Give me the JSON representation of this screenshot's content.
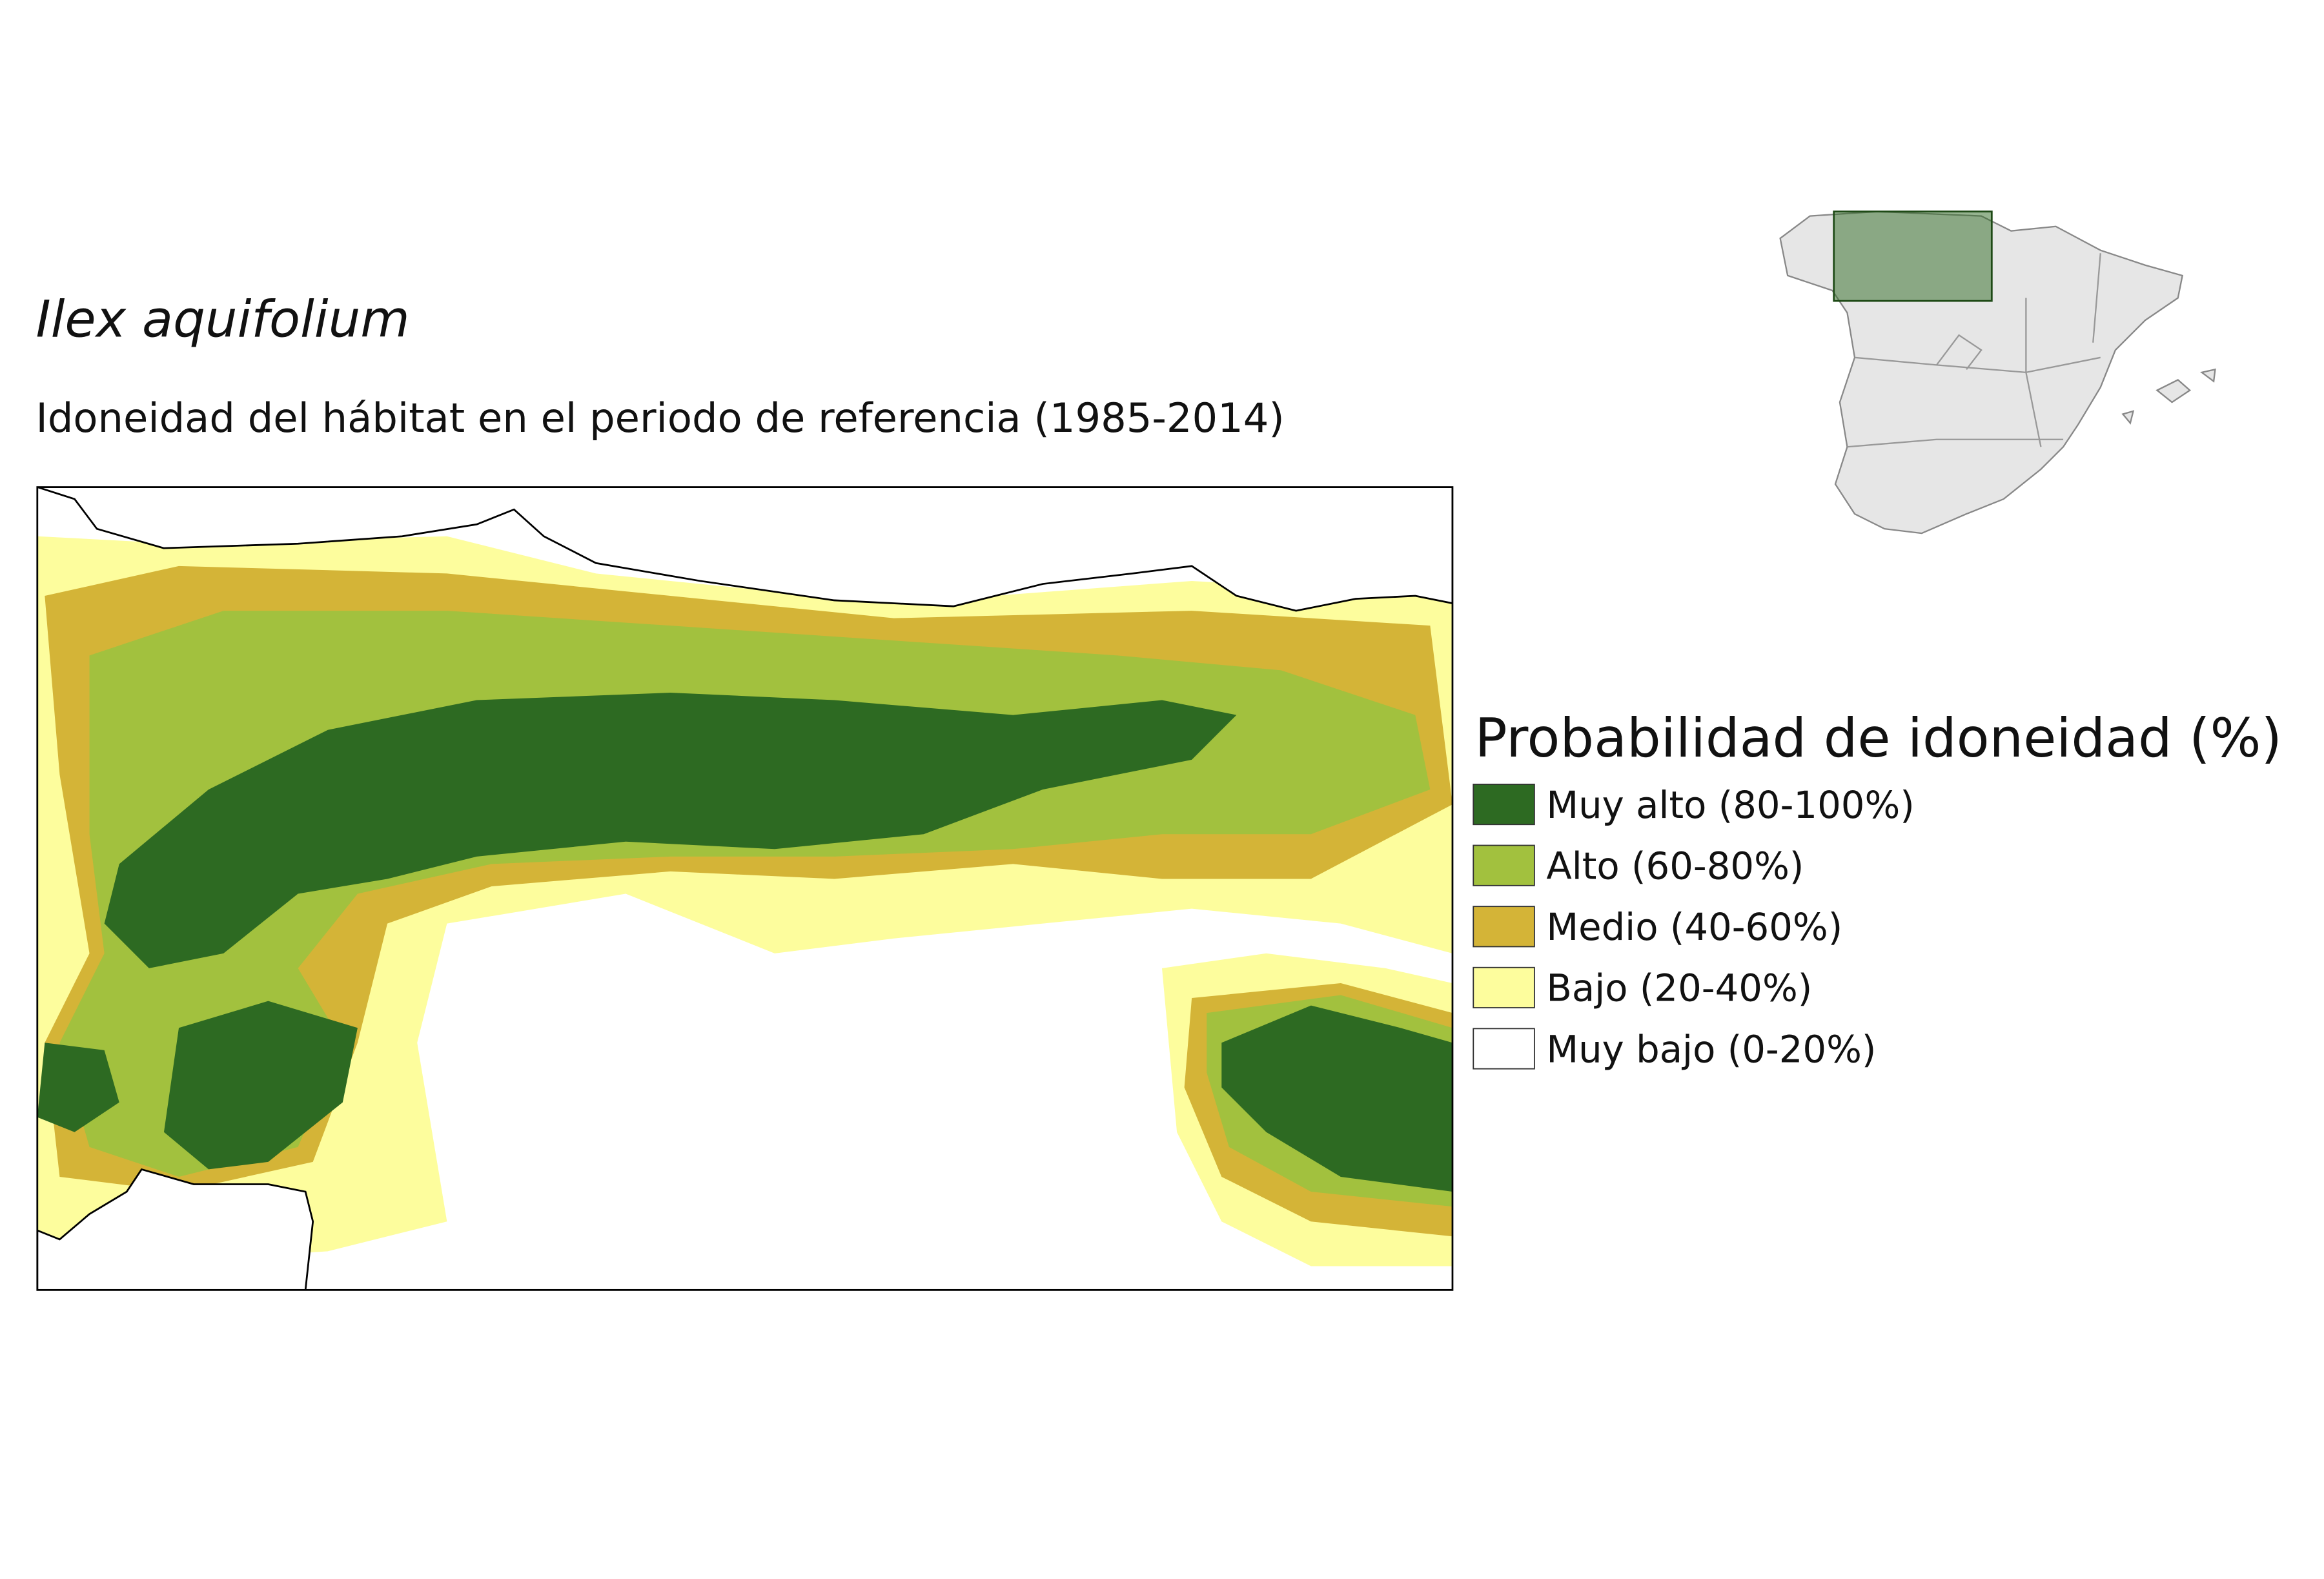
{
  "title": "Ilex aquifolium",
  "subtitle": "Idoneidad del hábitat en el periodo de referencia (1985-2014)",
  "legend": {
    "title": "Probabilidad de idoneidad (%)",
    "items": [
      {
        "label": "Muy alto (80-100%)",
        "color": "#2d6a22"
      },
      {
        "label": "Alto (60-80%)",
        "color": "#a2c13e"
      },
      {
        "label": "Medio (40-60%)",
        "color": "#d4b437"
      },
      {
        "label": "Bajo (20-40%)",
        "color": "#fdfd9d"
      },
      {
        "label": "Muy bajo (0-20%)",
        "color": "#ffffff"
      }
    ]
  }
}
